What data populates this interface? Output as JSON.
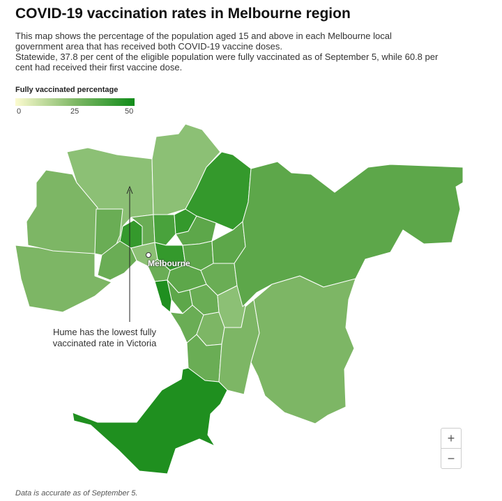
{
  "header": {
    "title": "COVID-19 vaccination rates in Melbourne region",
    "subtitle_lines": [
      "This map shows the percentage of the population aged 15 and above in each Melbourne local",
      "government area that has received both COVID-19 vaccine doses.",
      "Statewide, 37.8 per cent of the eligible population were fully vaccinated as of September 5, while 60.8 per",
      "cent had received their first vaccine dose."
    ]
  },
  "legend": {
    "title": "Fully vaccinated percentage",
    "min_label": "0",
    "mid_label": "25",
    "max_label": "50",
    "color_low": "#fcfbd0",
    "color_mid": "#7fb866",
    "color_high": "#118c1a"
  },
  "map": {
    "city_label": "Melbourne",
    "annotation_lines": [
      "Hume has the lowest fully",
      "vaccinated rate in Victoria"
    ],
    "lga_colors": {
      "pale": "#8cc075",
      "light": "#7db665",
      "medium": "#6aad55",
      "mid": "#5da74a",
      "strong": "#49a23c",
      "dark": "#34992c",
      "darkest": "#1f8f1f"
    }
  },
  "zoom": {
    "in_label": "+",
    "out_label": "−"
  },
  "footnote": "Data is accurate as of September 5."
}
